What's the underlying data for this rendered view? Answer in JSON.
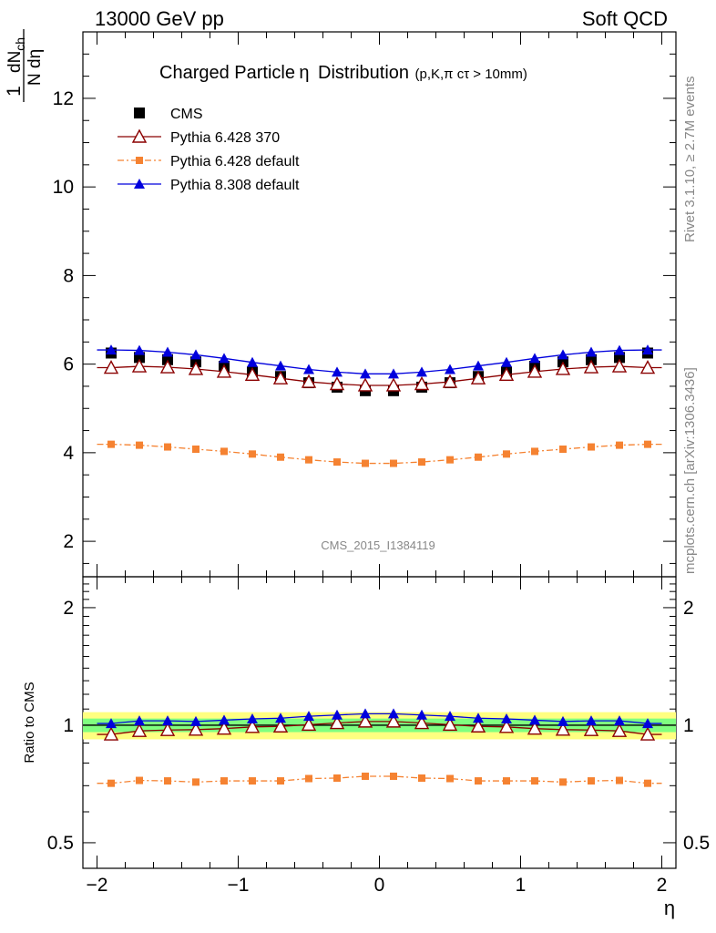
{
  "header": {
    "left": "13000 GeV pp",
    "right": "Soft QCD"
  },
  "plot_title": {
    "main": "Charged Particle",
    "eta": "η",
    "main2": "Distribution",
    "sub": "(p,K,π cτ > 10mm)"
  },
  "side_labels": {
    "rivet": "Rivet 3.1.10, ≥ 2.7M events",
    "mcplots": "mcplots.cern.ch [arXiv:1306.3436]"
  },
  "watermark": "CMS_2015_I1384119",
  "ylabel_top": {
    "num1": "1",
    "num_d": "dN",
    "num_sub": "ch",
    "den": "N dη"
  },
  "ylabel_ratio": "Ratio to CMS",
  "xlabel": "η",
  "colors": {
    "cms": "#000000",
    "py6_370": "#8b0000",
    "py6_default": "#f58231",
    "py8": "#0000dd",
    "band_outer": "#ffff80",
    "band_inner": "#80ff80"
  },
  "chart_data": [
    {
      "type": "scatter",
      "title": "Charged Particle η Distribution",
      "xlabel": "η",
      "ylabel": "1/N dN_ch/dη",
      "xlim": [
        -2.1,
        2.1
      ],
      "ylim": [
        1.2,
        13.5
      ],
      "y_ticks": [
        2,
        4,
        6,
        8,
        10,
        12
      ],
      "x_ticks": [
        -2,
        -1,
        0,
        1,
        2
      ],
      "x_ticklabels": [
        "−2",
        "−1",
        "0",
        "1",
        "2"
      ],
      "legend_position": "top-left",
      "x": [
        -1.9,
        -1.7,
        -1.5,
        -1.3,
        -1.1,
        -0.9,
        -0.7,
        -0.5,
        -0.3,
        -0.1,
        0.1,
        0.3,
        0.5,
        0.7,
        0.9,
        1.1,
        1.3,
        1.5,
        1.7,
        1.9
      ],
      "series": [
        {
          "name": "CMS",
          "style": "square",
          "values": [
            6.25,
            6.15,
            6.1,
            6.05,
            5.95,
            5.82,
            5.72,
            5.58,
            5.48,
            5.4,
            5.4,
            5.48,
            5.58,
            5.72,
            5.82,
            5.95,
            6.05,
            6.1,
            6.15,
            6.25
          ]
        },
        {
          "name": "Pythia 6.428 370",
          "style": "open-triangle",
          "values": [
            5.92,
            5.95,
            5.93,
            5.89,
            5.83,
            5.76,
            5.68,
            5.6,
            5.55,
            5.52,
            5.52,
            5.55,
            5.6,
            5.68,
            5.76,
            5.83,
            5.89,
            5.93,
            5.95,
            5.92
          ]
        },
        {
          "name": "Pythia 6.428 default",
          "style": "small-square-dashdot",
          "values": [
            4.19,
            4.17,
            4.13,
            4.08,
            4.03,
            3.97,
            3.9,
            3.84,
            3.79,
            3.76,
            3.76,
            3.79,
            3.84,
            3.9,
            3.97,
            4.03,
            4.08,
            4.13,
            4.17,
            4.19
          ]
        },
        {
          "name": "Pythia 8.308 default",
          "style": "filled-triangle",
          "values": [
            6.32,
            6.31,
            6.27,
            6.21,
            6.13,
            6.04,
            5.96,
            5.88,
            5.82,
            5.78,
            5.78,
            5.82,
            5.88,
            5.96,
            6.04,
            6.13,
            6.21,
            6.27,
            6.31,
            6.32
          ]
        }
      ]
    },
    {
      "type": "line",
      "ylabel": "Ratio to CMS",
      "xlabel": "η",
      "xlim": [
        -2.1,
        2.1
      ],
      "ylim": [
        0.43,
        2.4
      ],
      "log_scale_y": true,
      "y_ticks": [
        0.5,
        1,
        2
      ],
      "y_ticklabels": [
        "0.5",
        "1",
        "2"
      ],
      "band_inner": [
        0.96,
        1.04
      ],
      "band_outer": [
        0.92,
        1.08
      ],
      "x": [
        -1.9,
        -1.7,
        -1.5,
        -1.3,
        -1.1,
        -0.9,
        -0.7,
        -0.5,
        -0.3,
        -0.1,
        0.1,
        0.3,
        0.5,
        0.7,
        0.9,
        1.1,
        1.3,
        1.5,
        1.7,
        1.9
      ],
      "series": [
        {
          "name": "Pythia 6.428 370",
          "style": "open-triangle",
          "values": [
            0.947,
            0.967,
            0.972,
            0.974,
            0.98,
            0.99,
            0.993,
            1.003,
            1.013,
            1.022,
            1.022,
            1.013,
            1.003,
            0.993,
            0.99,
            0.98,
            0.974,
            0.972,
            0.967,
            0.947
          ]
        },
        {
          "name": "Pythia 6.428 default",
          "style": "small-square-dashdot",
          "values": [
            0.71,
            0.722,
            0.72,
            0.715,
            0.72,
            0.72,
            0.72,
            0.73,
            0.732,
            0.74,
            0.74,
            0.732,
            0.73,
            0.72,
            0.72,
            0.72,
            0.715,
            0.72,
            0.722,
            0.71
          ]
        },
        {
          "name": "Pythia 8.308 default",
          "style": "filled-triangle",
          "values": [
            1.01,
            1.026,
            1.026,
            1.022,
            1.03,
            1.038,
            1.042,
            1.054,
            1.062,
            1.07,
            1.07,
            1.062,
            1.054,
            1.042,
            1.038,
            1.03,
            1.022,
            1.026,
            1.026,
            1.01
          ]
        }
      ]
    }
  ]
}
